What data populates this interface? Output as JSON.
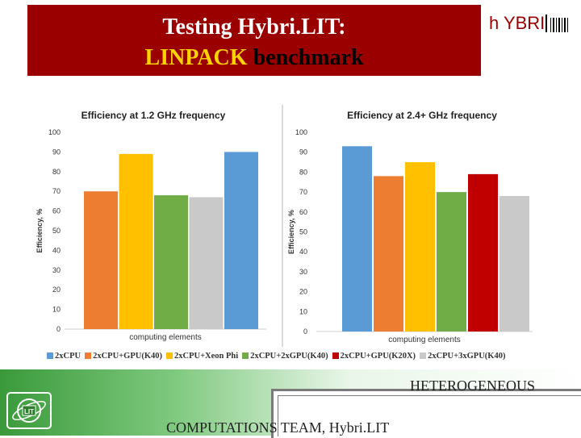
{
  "header": {
    "title_line1": "Testing  Hybri.LIT:",
    "title_line2_highlight": "LINPACK",
    "title_line2_rest": " benchmark",
    "logo_text": "h YBRI",
    "brand_color": "#9b0000"
  },
  "footer": {
    "line1": "HETEROGENEOUS",
    "line2": "COMPUTATIONS TEAM, Hybri.LIT"
  },
  "chart_data": [
    {
      "type": "bar",
      "title": "Efficiency at 1.2 GHz frequency",
      "xlabel": "computing elements",
      "ylabel": "Efficiency, %",
      "ylim": [
        0,
        100
      ],
      "yticks": [
        0,
        10,
        20,
        30,
        40,
        50,
        60,
        70,
        80,
        90,
        100
      ],
      "grid": false,
      "series": [
        {
          "name": "2xCPU+GPU(K40)",
          "values": [
            70
          ],
          "color": "#ed7d31"
        },
        {
          "name": "2xCPU+Xeon Phi",
          "values": [
            89
          ],
          "color": "#ffc000"
        },
        {
          "name": "2xCPU+2xGPU(K40)",
          "values": [
            68
          ],
          "color": "#70ad47"
        },
        {
          "name": "2xCPU+3xGPU(K40)",
          "values": [
            67
          ],
          "color": "#c9c9c9"
        },
        {
          "name": "2xCPU",
          "values": [
            90
          ],
          "color": "#5b9bd5"
        }
      ]
    },
    {
      "type": "bar",
      "title": "Efficiency at 2.4+ GHz frequency",
      "xlabel": "computing elements",
      "ylabel": "Efficiency, %",
      "ylim": [
        0,
        100
      ],
      "yticks": [
        0,
        10,
        20,
        30,
        40,
        50,
        60,
        70,
        80,
        90,
        100
      ],
      "grid": false,
      "series": [
        {
          "name": "2xCPU",
          "values": [
            93
          ],
          "color": "#5b9bd5"
        },
        {
          "name": "2xCPU+GPU(K40)",
          "values": [
            78
          ],
          "color": "#ed7d31"
        },
        {
          "name": "2xCPU+Xeon Phi",
          "values": [
            85
          ],
          "color": "#ffc000"
        },
        {
          "name": "2xCPU+2xGPU(K40)",
          "values": [
            70
          ],
          "color": "#70ad47"
        },
        {
          "name": "2xCPU+GPU(K20X)",
          "values": [
            79
          ],
          "color": "#c00000"
        },
        {
          "name": "2xCPU+3xGPU(K40)",
          "values": [
            68
          ],
          "color": "#c9c9c9"
        }
      ]
    }
  ],
  "legend": [
    {
      "label": "2xCPU",
      "color": "#5b9bd5"
    },
    {
      "label": "2xCPU+GPU(K40)",
      "color": "#ed7d31"
    },
    {
      "label": "2xCPU+Xeon Phi",
      "color": "#ffc000"
    },
    {
      "label": "2xCPU+2xGPU(K40)",
      "color": "#70ad47"
    },
    {
      "label": "2xCPU+GPU(K20X)",
      "color": "#c00000"
    },
    {
      "label": "2xCPU+3xGPU(K40)",
      "color": "#c9c9c9"
    }
  ]
}
